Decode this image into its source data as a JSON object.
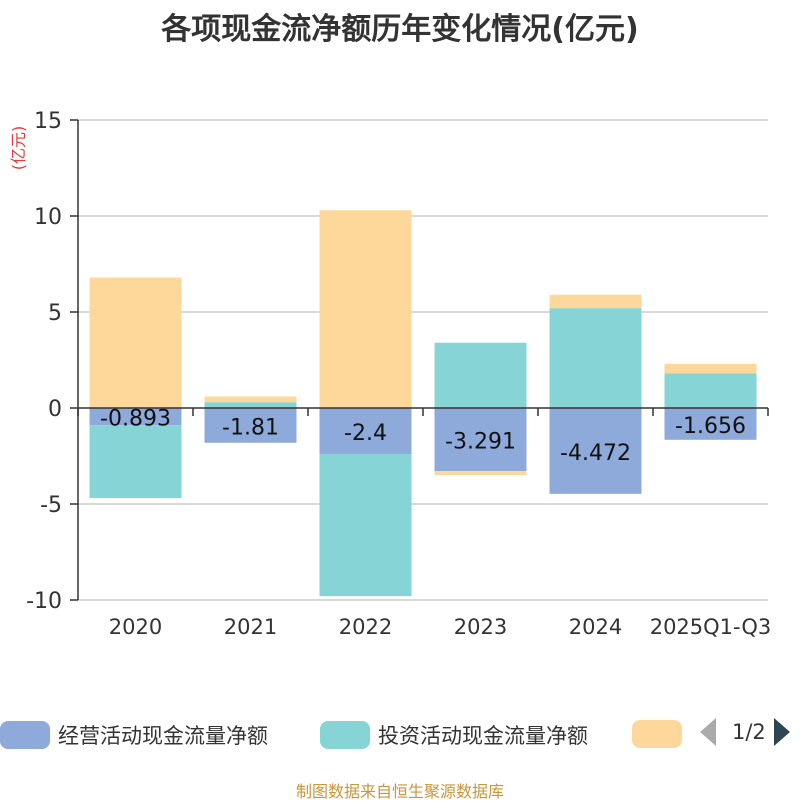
{
  "title": "各项现金流净额历年变化情况(亿元)",
  "footer": "制图数据来自恒生聚源数据库",
  "legend": {
    "items": [
      {
        "label": "经营活动现金流量净额",
        "color": "#8eaadb"
      },
      {
        "label": "投资活动现金流量净额",
        "color": "#86d4d6"
      },
      {
        "label": "",
        "color": "#fdd89a"
      }
    ],
    "page": "1/2"
  },
  "chart_data": {
    "type": "bar",
    "stacked": true,
    "categories": [
      "2020",
      "2021",
      "2022",
      "2023",
      "2024",
      "2025Q1-Q3"
    ],
    "ylabel": "(亿元)",
    "ylim": [
      -10,
      15
    ],
    "yticks": [
      -10,
      -5,
      0,
      5,
      10,
      15
    ],
    "grid": true,
    "legend_position": "bottom",
    "series": [
      {
        "name": "经营活动现金流量净额",
        "color": "#8eaadb",
        "values": [
          -0.893,
          -1.81,
          -2.4,
          -3.291,
          -4.472,
          -1.656
        ],
        "labels": [
          "-0.893",
          "-1.81",
          "-2.4",
          "-3.291",
          "-4.472",
          "-1.656"
        ]
      },
      {
        "name": "投资活动现金流量净额",
        "color": "#86d4d6",
        "values": [
          -3.8,
          0.3,
          -7.4,
          3.4,
          5.2,
          1.8
        ]
      },
      {
        "color": "#fdd89a",
        "values": [
          6.8,
          0.3,
          10.3,
          -0.2,
          0.7,
          0.5
        ]
      }
    ]
  }
}
